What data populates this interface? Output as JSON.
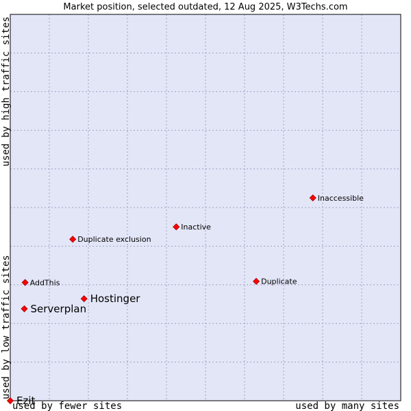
{
  "chart_data": {
    "type": "scatter",
    "title": "Market position, selected outdated, 12 Aug 2025, W3Techs.com",
    "xlabel_left": "used by fewer sites",
    "xlabel_right": "used by many sites",
    "ylabel_bottom": "used by low traffic sites",
    "ylabel_top": "used by high traffic sites",
    "xlim": [
      0,
      100
    ],
    "ylim": [
      0,
      100
    ],
    "grid": true,
    "background_color": "#e3e6f7",
    "marker_color": "#ff0000",
    "points": [
      {
        "name": "Inaccessible",
        "x": 77.5,
        "y": 52.5,
        "highlight": false
      },
      {
        "name": "Inactive",
        "x": 42.5,
        "y": 45.0,
        "highlight": false
      },
      {
        "name": "Duplicate exclusion",
        "x": 16.0,
        "y": 41.8,
        "highlight": false
      },
      {
        "name": "AddThis",
        "x": 3.8,
        "y": 30.6,
        "highlight": false
      },
      {
        "name": "Duplicate",
        "x": 63.0,
        "y": 30.9,
        "highlight": false
      },
      {
        "name": "Hostinger",
        "x": 18.9,
        "y": 26.4,
        "highlight": true
      },
      {
        "name": "Serverplan",
        "x": 3.6,
        "y": 23.8,
        "highlight": true
      },
      {
        "name": "Ezit",
        "x": 0.0,
        "y": 0.0,
        "highlight": true
      }
    ]
  }
}
